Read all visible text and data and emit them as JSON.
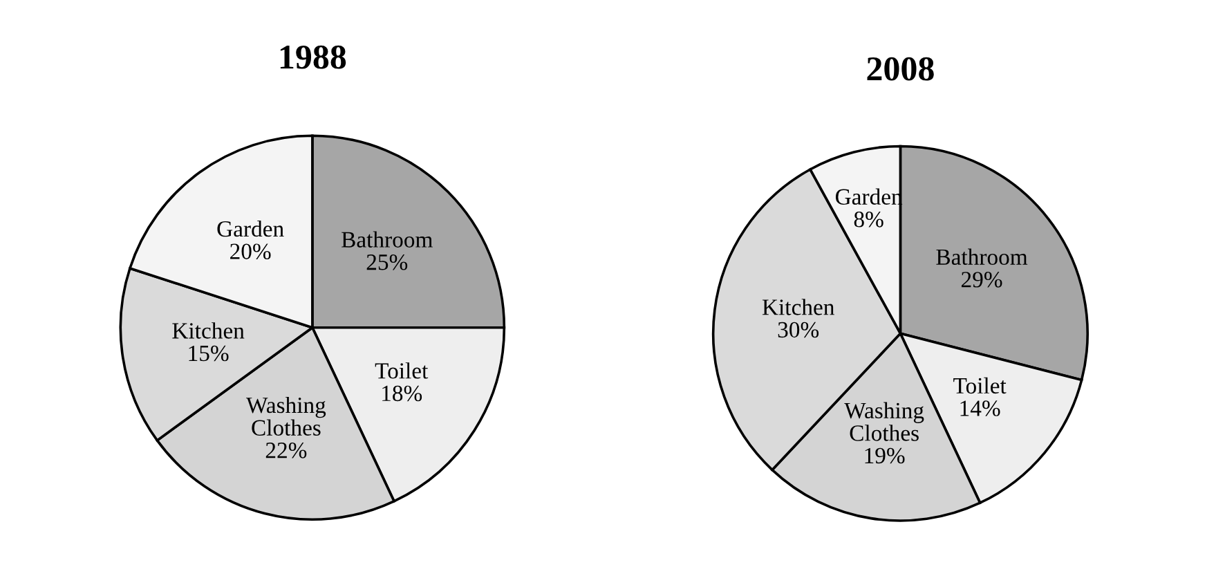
{
  "chart_data": [
    {
      "type": "pie",
      "title": "1988",
      "categories": [
        "Bathroom",
        "Toilet",
        "Washing Clothes",
        "Kitchen",
        "Garden"
      ],
      "values": [
        25,
        18,
        22,
        15,
        20
      ],
      "value_labels": [
        "25%",
        "18%",
        "22%",
        "15%",
        "20%"
      ],
      "colors": [
        "#a6a6a6",
        "#eeeeee",
        "#d4d4d4",
        "#dadada",
        "#f4f4f4"
      ]
    },
    {
      "type": "pie",
      "title": "2008",
      "categories": [
        "Bathroom",
        "Toilet",
        "Washing Clothes",
        "Kitchen",
        "Garden"
      ],
      "values": [
        29,
        14,
        19,
        30,
        8
      ],
      "value_labels": [
        "29%",
        "14%",
        "19%",
        "30%",
        "8%"
      ],
      "colors": [
        "#a6a6a6",
        "#eeeeee",
        "#d4d4d4",
        "#dadada",
        "#f4f4f4"
      ]
    }
  ]
}
